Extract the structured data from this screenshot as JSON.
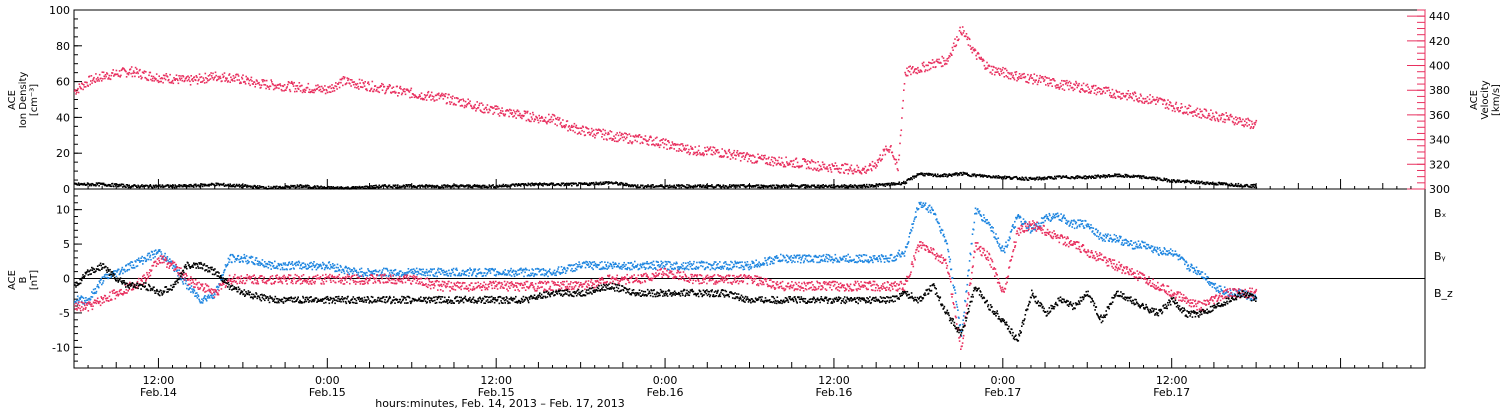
{
  "colors": {
    "density": "#000000",
    "velocity": "#e8305f",
    "bx": "#000000",
    "by": "#1f86e0",
    "bz": "#e8305f",
    "axis_right": "#e8305f"
  },
  "chart_data": [
    {
      "type": "scatter",
      "panel": "top",
      "left_axis_label": [
        "ACE",
        "Ion Density",
        "[cm⁻³]"
      ],
      "right_axis_label": [
        "ACE",
        "Velocity",
        "[km/s]"
      ],
      "ylim": [
        0,
        100
      ],
      "yticks": [
        0,
        20,
        40,
        60,
        80,
        100
      ],
      "ylim_right": [
        300,
        445
      ],
      "yticks_right": [
        300,
        320,
        340,
        360,
        380,
        400,
        420,
        440
      ],
      "xlim_hours": [
        6,
        102
      ],
      "series": [
        {
          "name": "Ion Density",
          "color_key": "density",
          "x": [
            6,
            8,
            10,
            12,
            14,
            16,
            18,
            20,
            22,
            24,
            26,
            28,
            30,
            32,
            34,
            36,
            38,
            40,
            42,
            44,
            46,
            48,
            50,
            52,
            54,
            56,
            58,
            60,
            62,
            64,
            65,
            66,
            67,
            68,
            69,
            70,
            72,
            74,
            76,
            78,
            80,
            82,
            84,
            86,
            88,
            90
          ],
          "y": [
            3,
            3,
            2,
            2,
            2,
            3,
            2,
            1,
            2,
            1,
            1,
            2,
            2,
            2,
            2,
            2,
            3,
            3,
            3,
            4,
            2,
            2,
            2,
            2,
            2,
            2,
            2,
            2,
            2,
            3,
            4,
            9,
            8,
            8,
            9,
            8,
            7,
            6,
            7,
            7,
            8,
            7,
            5,
            4,
            3,
            2
          ]
        },
        {
          "name": "Velocity",
          "color_key": "velocity",
          "axis": "right",
          "x": [
            6,
            7,
            8,
            9,
            10,
            11,
            12,
            13,
            14,
            15,
            16,
            17,
            18,
            19,
            20,
            21,
            22,
            23,
            24,
            25,
            26,
            27,
            28,
            29,
            30,
            31,
            32,
            33,
            34,
            35,
            36,
            37,
            38,
            39,
            40,
            41,
            42,
            43,
            44,
            45,
            46,
            47,
            48,
            49,
            50,
            51,
            52,
            53,
            54,
            55,
            56,
            57,
            58,
            59,
            60,
            61,
            62,
            62.5,
            63,
            63.5,
            64,
            64.5,
            65,
            66,
            67,
            68,
            69,
            70,
            71,
            72,
            73,
            74,
            75,
            76,
            77,
            78,
            79,
            80,
            81,
            82,
            83,
            84,
            85,
            86,
            87,
            88,
            89,
            90
          ],
          "y": [
            380,
            388,
            392,
            394,
            396,
            393,
            391,
            390,
            388,
            390,
            392,
            391,
            389,
            386,
            385,
            384,
            383,
            382,
            381,
            388,
            386,
            384,
            382,
            380,
            378,
            376,
            375,
            372,
            370,
            366,
            364,
            362,
            360,
            358,
            357,
            352,
            348,
            346,
            344,
            342,
            341,
            340,
            337,
            334,
            332,
            331,
            330,
            328,
            326,
            324,
            323,
            322,
            321,
            319,
            318,
            317,
            316,
            317,
            322,
            330,
            335,
            315,
            395,
            398,
            402,
            405,
            430,
            410,
            398,
            395,
            392,
            390,
            388,
            385,
            384,
            382,
            380,
            378,
            376,
            374,
            372,
            368,
            365,
            362,
            360,
            358,
            355,
            352
          ]
        }
      ]
    },
    {
      "type": "scatter",
      "panel": "bottom",
      "left_axis_label": [
        "ACE",
        "B",
        "[nT]"
      ],
      "ylim": [
        -13,
        13
      ],
      "yticks": [
        -10,
        -5,
        0,
        5,
        10
      ],
      "zero_line": true,
      "xlim_hours": [
        6,
        102
      ],
      "legend": [
        "Bₓ",
        "Bᵧ",
        "B_z"
      ],
      "series": [
        {
          "name": "Bx",
          "label": "Bₓ",
          "color_key": "bx",
          "x": [
            6,
            7,
            8,
            9,
            10,
            11,
            12,
            13,
            14,
            15,
            16,
            17,
            18,
            20,
            22,
            24,
            26,
            28,
            30,
            32,
            34,
            36,
            38,
            40,
            42,
            44,
            46,
            48,
            50,
            52,
            54,
            56,
            58,
            60,
            62,
            64,
            65,
            66,
            67,
            68,
            69,
            70,
            71,
            72,
            73,
            74,
            75,
            76,
            77,
            78,
            79,
            80,
            81,
            82,
            83,
            84,
            85,
            86,
            87,
            88,
            89,
            90
          ],
          "y": [
            -1,
            1,
            2,
            0,
            -1,
            -1,
            -2,
            -1,
            2,
            2,
            1,
            -1,
            -2,
            -3,
            -3,
            -3,
            -3,
            -3,
            -3,
            -3,
            -3,
            -3,
            -3,
            -2,
            -2,
            -1,
            -2,
            -2,
            -2,
            -2,
            -3,
            -3,
            -3,
            -3,
            -3,
            -3,
            -2,
            -3,
            -1,
            -5,
            -8,
            -1,
            -4,
            -6,
            -9,
            -2,
            -5,
            -3,
            -4,
            -2,
            -6,
            -2,
            -3,
            -4,
            -5,
            -3,
            -5,
            -5,
            -4,
            -3,
            -2,
            -3
          ]
        },
        {
          "name": "By",
          "label": "Bᵧ",
          "color_key": "by",
          "x": [
            6,
            7,
            8,
            9,
            10,
            11,
            12,
            13,
            14,
            15,
            16,
            17,
            18,
            20,
            22,
            24,
            26,
            28,
            30,
            32,
            34,
            36,
            38,
            40,
            42,
            44,
            46,
            48,
            50,
            52,
            54,
            56,
            58,
            60,
            62,
            64,
            65,
            66,
            67,
            68,
            69,
            70,
            71,
            72,
            73,
            74,
            75,
            76,
            77,
            78,
            79,
            80,
            81,
            82,
            83,
            84,
            85,
            86,
            87,
            88,
            89,
            90
          ],
          "y": [
            -3,
            -3,
            0,
            1,
            2,
            3,
            4,
            2,
            -1,
            -3,
            -2,
            3,
            3,
            2,
            2,
            2,
            1,
            1,
            1,
            1,
            1,
            1,
            1,
            1,
            2,
            2,
            2,
            2,
            2,
            2,
            2,
            3,
            3,
            3,
            3,
            3,
            4,
            11,
            10,
            5,
            -8,
            10,
            8,
            4,
            9,
            7,
            9,
            9,
            8,
            8,
            6,
            6,
            5,
            5,
            4,
            4,
            2,
            1,
            -1,
            -2,
            -2,
            -3
          ]
        },
        {
          "name": "Bz",
          "label": "B_z",
          "color_key": "bz",
          "x": [
            6,
            7,
            8,
            9,
            10,
            11,
            12,
            13,
            14,
            15,
            16,
            17,
            18,
            20,
            22,
            24,
            26,
            28,
            30,
            32,
            34,
            36,
            38,
            40,
            42,
            44,
            46,
            48,
            50,
            52,
            54,
            56,
            58,
            60,
            62,
            64,
            65,
            66,
            67,
            68,
            69,
            70,
            71,
            72,
            73,
            74,
            75,
            76,
            77,
            78,
            79,
            80,
            81,
            82,
            83,
            84,
            85,
            86,
            87,
            88,
            89,
            90
          ],
          "y": [
            -4,
            -4,
            -3,
            -2,
            -1,
            0,
            3,
            2,
            0,
            -1,
            -2,
            0,
            0,
            0,
            0,
            0,
            0,
            0,
            0,
            -1,
            -1,
            -1,
            -1,
            -1,
            -1,
            0,
            0,
            1,
            0,
            0,
            0,
            -1,
            -1,
            -1,
            -1,
            -1,
            -1,
            5,
            4,
            2,
            -10,
            5,
            3,
            -2,
            7,
            8,
            7,
            6,
            5,
            4,
            3,
            2,
            1,
            0,
            -1,
            -2,
            -3,
            -4,
            -3,
            -2,
            -2,
            -2
          ]
        }
      ]
    }
  ],
  "x_axis": {
    "ticks": [
      {
        "hour": 12,
        "time": "12:00",
        "date": "Feb.14"
      },
      {
        "hour": 24,
        "time": "0:00",
        "date": "Feb.15"
      },
      {
        "hour": 36,
        "time": "12:00",
        "date": "Feb.15"
      },
      {
        "hour": 48,
        "time": "0:00",
        "date": "Feb.16"
      },
      {
        "hour": 60,
        "time": "12:00",
        "date": "Feb.16"
      },
      {
        "hour": 72,
        "time": "0:00",
        "date": "Feb.17"
      },
      {
        "hour": 84,
        "time": "12:00",
        "date": "Feb.17"
      }
    ],
    "title": "hours:minutes, Feb. 14, 2013 – Feb. 17, 2013"
  }
}
